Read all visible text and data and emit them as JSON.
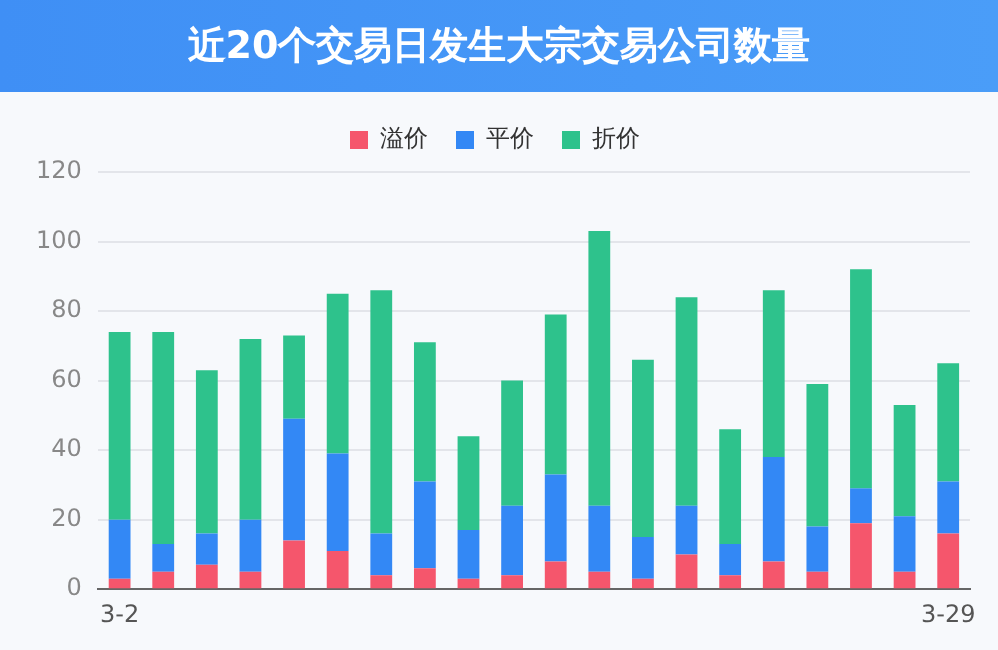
{
  "chart_data": {
    "type": "bar",
    "title": "近20个交易日发生大宗交易公司数量",
    "stacked": true,
    "legend": "top",
    "grid": "y",
    "categories": [
      "3-2",
      null,
      null,
      null,
      null,
      null,
      null,
      null,
      null,
      null,
      null,
      null,
      null,
      null,
      null,
      null,
      null,
      null,
      null,
      "3-29"
    ],
    "ylim": [
      0,
      120
    ],
    "yticks": [
      0,
      20,
      40,
      60,
      80,
      100,
      120
    ],
    "series": [
      {
        "name": "溢价",
        "color": "#f5566c",
        "values": [
          3,
          5,
          7,
          5,
          14,
          11,
          4,
          6,
          3,
          4,
          8,
          5,
          3,
          10,
          4,
          8,
          5,
          19,
          5,
          16
        ]
      },
      {
        "name": "平价",
        "color": "#3388f5",
        "values": [
          17,
          8,
          9,
          15,
          35,
          28,
          12,
          25,
          14,
          20,
          25,
          19,
          12,
          14,
          9,
          30,
          13,
          10,
          16,
          15
        ]
      },
      {
        "name": "折价",
        "color": "#2ec28c",
        "values": [
          54,
          61,
          47,
          52,
          24,
          46,
          70,
          40,
          27,
          36,
          46,
          79,
          51,
          60,
          33,
          48,
          41,
          63,
          32,
          34
        ]
      }
    ]
  }
}
